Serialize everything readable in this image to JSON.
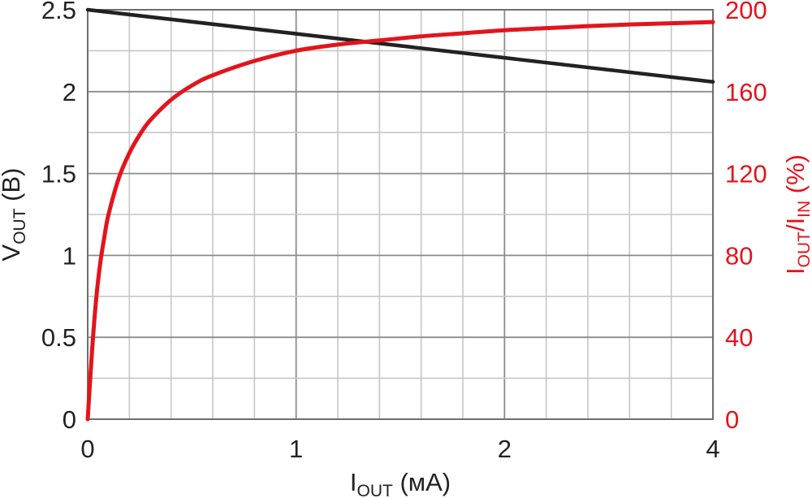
{
  "colors": {
    "vout_line": "#222222",
    "ratio_line": "#e3141c",
    "left_axis_text": "#222222",
    "right_axis_text": "#e3141c"
  },
  "chart_data": {
    "type": "line",
    "x_axis": {
      "label_main": "I",
      "label_sub": "OUT",
      "label_unit": " (мА)",
      "ticks": [
        {
          "value": 0,
          "label": "0"
        },
        {
          "value": 1,
          "label": "1"
        },
        {
          "value": 2,
          "label": "2"
        },
        {
          "value": 3,
          "label": "4"
        }
      ],
      "range": [
        0,
        3
      ],
      "minor_divisions": 15
    },
    "y_left": {
      "label_main": "V",
      "label_sub": "OUT",
      "label_unit": " (В)",
      "range": [
        0,
        2.5
      ],
      "ticks": [
        "0",
        "0.5",
        "1",
        "1.5",
        "2",
        "2.5"
      ],
      "tick_values": [
        0,
        0.5,
        1,
        1.5,
        2,
        2.5
      ]
    },
    "y_right": {
      "label_i1": "I",
      "label_sub1": "OUT",
      "label_sep": "/I",
      "label_sub2": "IN",
      "label_unit": " (%)",
      "range": [
        0,
        200
      ],
      "ticks": [
        "0",
        "40",
        "80",
        "120",
        "160",
        "200"
      ],
      "tick_values": [
        0,
        40,
        80,
        120,
        160,
        200
      ]
    },
    "series": [
      {
        "axis": "left",
        "points": [
          [
            0,
            2.5
          ],
          [
            3,
            2.06
          ]
        ]
      },
      {
        "axis": "right",
        "points": [
          [
            0,
            0
          ],
          [
            0.02,
            32
          ],
          [
            0.04,
            58
          ],
          [
            0.06,
            76
          ],
          [
            0.08,
            89
          ],
          [
            0.1,
            100
          ],
          [
            0.15,
            118
          ],
          [
            0.2,
            130
          ],
          [
            0.25,
            139
          ],
          [
            0.3,
            146
          ],
          [
            0.4,
            156
          ],
          [
            0.5,
            163
          ],
          [
            0.6,
            168
          ],
          [
            0.8,
            175
          ],
          [
            1.0,
            180
          ],
          [
            1.2,
            183
          ],
          [
            1.4,
            185
          ],
          [
            1.6,
            187
          ],
          [
            1.8,
            188.5
          ],
          [
            2.0,
            190
          ],
          [
            2.2,
            191
          ],
          [
            2.4,
            192
          ],
          [
            2.6,
            192.8
          ],
          [
            2.8,
            193.4
          ],
          [
            3.0,
            194
          ]
        ]
      }
    ]
  }
}
